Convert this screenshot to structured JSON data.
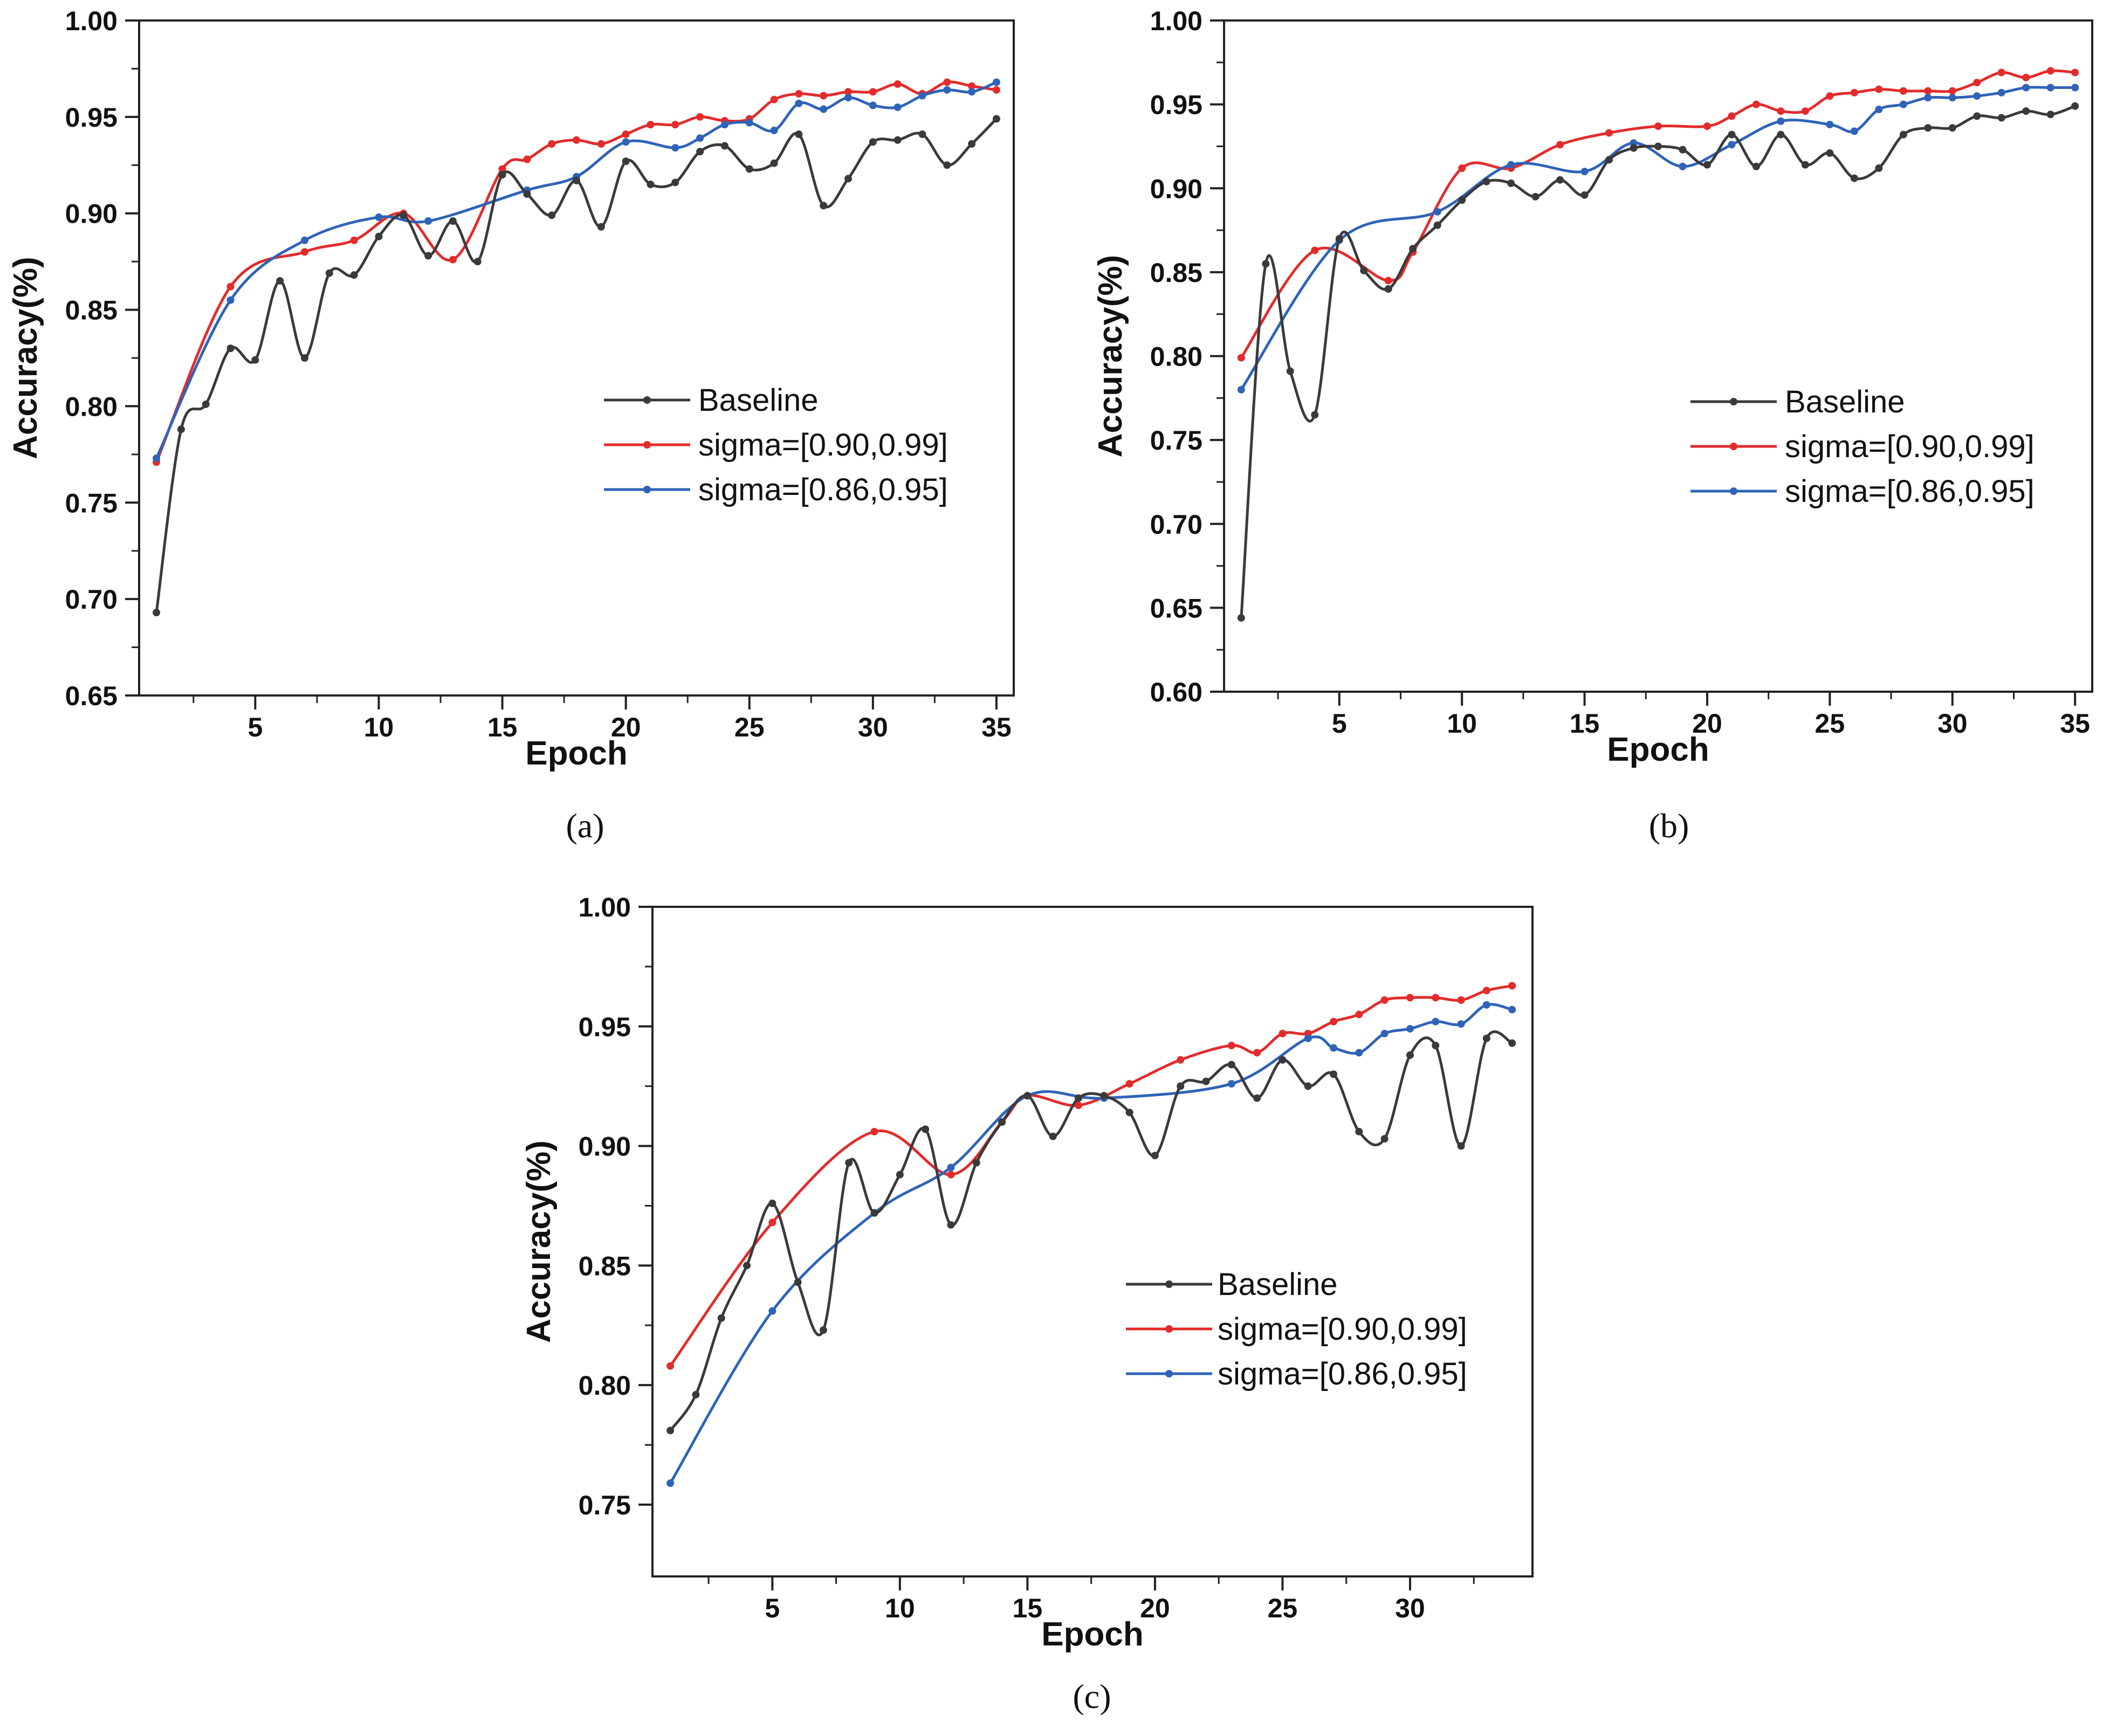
{
  "colors": {
    "Baseline": "#3a3a3a",
    "sigma=[0.90,0.99]": "#e32b2b",
    "sigma=[0.86,0.95]": "#2e63b8"
  },
  "chart_data": [
    {
      "type": "line",
      "caption": "(a)",
      "xlabel": "Epoch",
      "ylabel": "Accuracy(%)",
      "xlim": [
        0.3,
        35.7
      ],
      "ylim": [
        0.65,
        1.0
      ],
      "xticks": [
        5,
        10,
        15,
        20,
        25,
        30,
        35
      ],
      "yticks": [
        0.65,
        0.7,
        0.75,
        0.8,
        0.85,
        0.9,
        0.95,
        1.0
      ],
      "legend_position": "center-right",
      "x": [
        1,
        2,
        3,
        4,
        5,
        6,
        7,
        8,
        9,
        10,
        11,
        12,
        13,
        14,
        15,
        16,
        17,
        18,
        19,
        20,
        21,
        22,
        23,
        24,
        25,
        26,
        27,
        28,
        29,
        30,
        31,
        32,
        33,
        34,
        35
      ],
      "series": [
        {
          "name": "Baseline",
          "values": [
            0.693,
            0.788,
            0.801,
            0.83,
            0.824,
            0.865,
            0.825,
            0.869,
            0.868,
            0.888,
            0.899,
            0.878,
            0.896,
            0.875,
            0.92,
            0.91,
            0.899,
            0.917,
            0.893,
            0.927,
            0.915,
            0.916,
            0.932,
            0.935,
            0.923,
            0.926,
            0.941,
            0.904,
            0.918,
            0.937,
            0.938,
            0.941,
            0.925,
            0.936,
            0.949
          ]
        },
        {
          "name": "sigma=[0.90,0.99]",
          "values": [
            0.771,
            null,
            null,
            0.862,
            null,
            null,
            0.88,
            null,
            0.886,
            null,
            0.9,
            null,
            0.876,
            null,
            0.923,
            0.928,
            0.936,
            0.938,
            0.936,
            0.941,
            0.946,
            0.946,
            0.95,
            0.948,
            0.949,
            0.959,
            0.962,
            0.961,
            0.963,
            0.963,
            0.967,
            0.962,
            0.968,
            0.966,
            0.964
          ]
        },
        {
          "name": "sigma=[0.86,0.95]",
          "values": [
            0.773,
            null,
            null,
            0.855,
            null,
            null,
            0.886,
            null,
            null,
            0.898,
            null,
            0.896,
            null,
            null,
            null,
            0.912,
            null,
            0.919,
            null,
            0.937,
            null,
            0.934,
            0.939,
            0.946,
            0.947,
            0.943,
            0.957,
            0.954,
            0.96,
            0.956,
            0.955,
            0.961,
            0.964,
            0.963,
            0.968
          ]
        }
      ]
    },
    {
      "type": "line",
      "caption": "(b)",
      "xlabel": "Epoch",
      "ylabel": "Accuracy(%)",
      "xlim": [
        0.3,
        35.7
      ],
      "ylim": [
        0.6,
        1.0
      ],
      "xticks": [
        5,
        10,
        15,
        20,
        25,
        30,
        35
      ],
      "yticks": [
        0.6,
        0.65,
        0.7,
        0.75,
        0.8,
        0.85,
        0.9,
        0.95,
        1.0
      ],
      "legend_position": "center-right",
      "x": [
        1,
        2,
        3,
        4,
        5,
        6,
        7,
        8,
        9,
        10,
        11,
        12,
        13,
        14,
        15,
        16,
        17,
        18,
        19,
        20,
        21,
        22,
        23,
        24,
        25,
        26,
        27,
        28,
        29,
        30,
        31,
        32,
        33,
        34,
        35
      ],
      "series": [
        {
          "name": "Baseline",
          "values": [
            0.644,
            0.855,
            0.791,
            0.765,
            0.87,
            0.851,
            0.84,
            0.864,
            0.878,
            0.893,
            0.904,
            0.903,
            0.895,
            0.905,
            0.896,
            0.917,
            0.924,
            0.925,
            0.923,
            0.914,
            0.932,
            0.913,
            0.932,
            0.914,
            0.921,
            0.906,
            0.912,
            0.932,
            0.936,
            0.936,
            0.943,
            0.942,
            0.946,
            0.944,
            0.949
          ]
        },
        {
          "name": "sigma=[0.90,0.99]",
          "values": [
            0.799,
            null,
            null,
            0.863,
            null,
            null,
            0.845,
            0.862,
            null,
            0.912,
            null,
            0.912,
            null,
            0.926,
            null,
            0.933,
            null,
            0.937,
            null,
            0.937,
            0.943,
            0.95,
            0.946,
            0.946,
            0.955,
            0.957,
            0.959,
            0.958,
            0.958,
            0.958,
            0.963,
            0.969,
            0.966,
            0.97,
            0.969
          ]
        },
        {
          "name": "sigma=[0.86,0.95]",
          "values": [
            0.78,
            null,
            null,
            null,
            0.869,
            null,
            null,
            null,
            0.886,
            null,
            null,
            0.914,
            null,
            null,
            0.91,
            null,
            0.927,
            null,
            0.913,
            null,
            0.926,
            null,
            0.94,
            null,
            0.938,
            0.934,
            0.947,
            0.95,
            0.954,
            0.954,
            0.955,
            0.957,
            0.96,
            0.96,
            0.96
          ]
        }
      ]
    },
    {
      "type": "line",
      "caption": "(c)",
      "xlabel": "Epoch",
      "ylabel": "Accuracy(%)",
      "xlim": [
        0.3,
        34.8
      ],
      "ylim": [
        0.72,
        1.0
      ],
      "xticks": [
        5,
        10,
        15,
        20,
        25,
        30
      ],
      "yticks": [
        0.75,
        0.8,
        0.85,
        0.9,
        0.95,
        1.0
      ],
      "legend_position": "center-right",
      "x": [
        1,
        2,
        3,
        4,
        5,
        6,
        7,
        8,
        9,
        10,
        11,
        12,
        13,
        14,
        15,
        16,
        17,
        18,
        19,
        20,
        21,
        22,
        23,
        24,
        25,
        26,
        27,
        28,
        29,
        30,
        31,
        32,
        33,
        34
      ],
      "series": [
        {
          "name": "Baseline",
          "values": [
            0.781,
            0.796,
            0.828,
            0.85,
            0.876,
            0.843,
            0.823,
            0.893,
            0.872,
            0.888,
            0.907,
            0.867,
            0.893,
            0.91,
            0.921,
            0.904,
            0.92,
            0.921,
            0.914,
            0.896,
            0.925,
            0.927,
            0.934,
            0.92,
            0.936,
            0.925,
            0.93,
            0.906,
            0.903,
            0.938,
            0.942,
            0.9,
            0.945,
            0.943
          ]
        },
        {
          "name": "sigma=[0.90,0.99]",
          "values": [
            0.808,
            null,
            null,
            null,
            0.868,
            null,
            null,
            null,
            0.906,
            null,
            null,
            0.888,
            null,
            0.91,
            0.921,
            null,
            0.917,
            null,
            0.926,
            null,
            0.936,
            null,
            0.942,
            0.939,
            0.947,
            0.947,
            0.952,
            0.955,
            0.961,
            0.962,
            0.962,
            0.961,
            0.965,
            0.967
          ]
        },
        {
          "name": "sigma=[0.86,0.95]",
          "values": [
            0.759,
            null,
            null,
            null,
            0.831,
            null,
            null,
            null,
            0.872,
            null,
            null,
            0.891,
            null,
            null,
            0.921,
            null,
            null,
            0.92,
            null,
            null,
            null,
            null,
            0.926,
            null,
            null,
            0.945,
            0.941,
            0.939,
            0.947,
            0.949,
            0.952,
            0.951,
            0.959,
            0.957
          ]
        }
      ]
    }
  ]
}
